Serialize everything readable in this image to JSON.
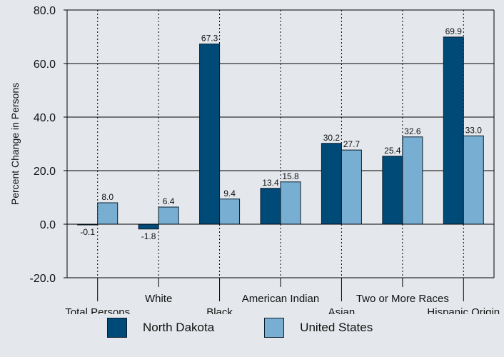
{
  "chart_data": {
    "type": "bar",
    "title": "",
    "xlabel": "",
    "ylabel": "Percent Change in Persons",
    "ylim": [
      -20,
      80
    ],
    "yticks": [
      "80.0",
      "60.0",
      "40.0",
      "20.0",
      "0.0",
      "-20.0"
    ],
    "ytick_values": [
      80,
      60,
      40,
      20,
      0,
      -20
    ],
    "categories": [
      "Total Persons",
      "White",
      "Black",
      "American Indian",
      "Asian",
      "Two or More Races",
      "Hispanic Origin"
    ],
    "series": [
      {
        "name": "North Dakota",
        "color": "#004a78",
        "values": [
          -0.1,
          -1.8,
          67.3,
          13.4,
          30.2,
          25.4,
          69.9
        ],
        "labels": [
          "-0.1",
          "-1.8",
          "67.3",
          "13.4",
          "30.2",
          "25.4",
          "69.9"
        ]
      },
      {
        "name": "United States",
        "color": "#78aed2",
        "values": [
          8.0,
          6.4,
          9.4,
          15.8,
          27.7,
          32.6,
          33.0
        ],
        "labels": [
          "8.0",
          "6.4",
          "9.4",
          "15.8",
          "27.7",
          "32.6",
          "33.0"
        ]
      }
    ],
    "grid": true,
    "legend_position": "bottom"
  }
}
